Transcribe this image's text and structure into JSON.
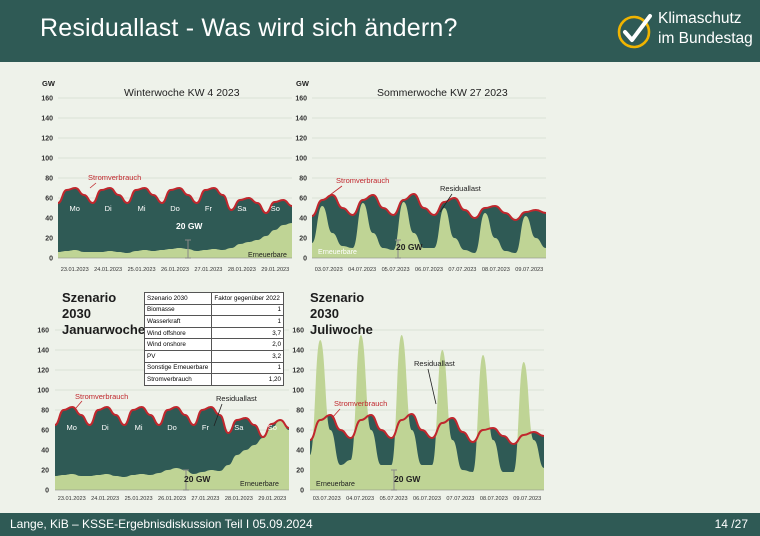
{
  "header": {
    "title": "Residuallast - Was wird sich ändern?",
    "logo_line1": "Klimaschutz",
    "logo_line2": "im Bundestag",
    "check_icon": "check-circle-icon",
    "colors": {
      "bar": "#2f5a55",
      "logo_ring": "#f0b400"
    }
  },
  "footer": {
    "left": "Lange, KiB – KSSE-Ergebnisdiskussion Teil I 05.09.2024",
    "right": "14 /27"
  },
  "colors": {
    "consumption": "#c0272d",
    "residual": "#2f5a55",
    "renewables": "#bfd495",
    "grid": "#c8d0c0"
  },
  "table": {
    "headers": [
      "Szenario 2030",
      "Faktor gegenüber 2022"
    ],
    "rows": [
      [
        "Biomasse",
        "1"
      ],
      [
        "Wasserkraft",
        "1"
      ],
      [
        "Wind offshore",
        "3,7"
      ],
      [
        "Wind onshore",
        "2,0"
      ],
      [
        "PV",
        "3,2"
      ],
      [
        "Sonstige Erneuerbare",
        "1"
      ],
      [
        "Stromverbrauch",
        "1,20"
      ]
    ]
  },
  "chart_data": [
    {
      "type": "area",
      "title": "Winterwoche KW 4 2023",
      "heading": "",
      "ylabel": "GW",
      "ylim": [
        0,
        160
      ],
      "yticks": [
        0,
        20,
        40,
        60,
        80,
        100,
        120,
        140,
        160
      ],
      "grid": true,
      "x_ticks": [
        "23.01.2023",
        "24.01.2023",
        "25.01.2023",
        "26.01.2023",
        "27.01.2023",
        "28.01.2023",
        "29.01.2023"
      ],
      "day_labels": [
        "Mo",
        "Di",
        "Mi",
        "Do",
        "Fr",
        "Sa",
        "So"
      ],
      "annotations": [
        "Stromverbrauch",
        "20 GW",
        "Erneuerbare"
      ],
      "series": [
        {
          "name": "Stromverbrauch",
          "values": [
            55,
            68,
            70,
            63,
            55,
            68,
            70,
            63,
            55,
            68,
            70,
            63,
            55,
            68,
            70,
            63,
            55,
            68,
            70,
            63,
            48,
            58,
            60,
            55,
            45,
            56,
            58,
            52
          ]
        },
        {
          "name": "Erneuerbare",
          "values": [
            6,
            7,
            8,
            6,
            6,
            6,
            7,
            6,
            5,
            7,
            8,
            7,
            8,
            9,
            10,
            9,
            7,
            8,
            9,
            8,
            10,
            14,
            16,
            18,
            22,
            28,
            33,
            35
          ]
        }
      ]
    },
    {
      "type": "area",
      "title": "Sommerwoche KW 27 2023",
      "heading": "",
      "ylabel": "GW",
      "ylim": [
        0,
        160
      ],
      "yticks": [
        0,
        20,
        40,
        60,
        80,
        100,
        120,
        140,
        160
      ],
      "grid": true,
      "x_ticks": [
        "03.07.2023",
        "04.07.2023",
        "05.07.2023",
        "06.07.2023",
        "07.07.2023",
        "08.07.2023",
        "09.07.2023"
      ],
      "day_labels": [],
      "annotations": [
        "Stromverbrauch",
        "Residuallast",
        "20 GW",
        "Erneuerbare"
      ],
      "series": [
        {
          "name": "Stromverbrauch",
          "values": [
            42,
            58,
            63,
            50,
            43,
            58,
            63,
            50,
            43,
            58,
            64,
            50,
            43,
            56,
            60,
            48,
            40,
            50,
            52,
            45,
            38,
            46,
            48,
            45
          ]
        },
        {
          "name": "Erneuerbare",
          "values": [
            15,
            52,
            25,
            12,
            10,
            55,
            25,
            10,
            8,
            56,
            25,
            10,
            10,
            50,
            20,
            8,
            5,
            45,
            20,
            7,
            5,
            42,
            20,
            10
          ]
        }
      ]
    },
    {
      "type": "area",
      "title": "",
      "heading": "Szenario 2030\nJanuarwoche",
      "ylabel": "",
      "ylim": [
        0,
        160
      ],
      "yticks": [
        0,
        20,
        40,
        60,
        80,
        100,
        120,
        140,
        160
      ],
      "grid": true,
      "x_ticks": [
        "23.01.2023",
        "24.01.2023",
        "25.01.2023",
        "26.01.2023",
        "27.01.2023",
        "28.01.2023",
        "29.01.2023"
      ],
      "day_labels": [
        "Mo",
        "Di",
        "Mi",
        "Do",
        "Fr",
        "Sa",
        "So"
      ],
      "annotations": [
        "Stromverbrauch",
        "Residuallast",
        "20 GW",
        "Erneuerbare"
      ],
      "series": [
        {
          "name": "Stromverbrauch",
          "values": [
            65,
            80,
            83,
            75,
            65,
            80,
            83,
            75,
            65,
            80,
            83,
            75,
            65,
            80,
            83,
            75,
            65,
            80,
            83,
            75,
            57,
            70,
            72,
            65,
            53,
            66,
            70,
            62
          ]
        },
        {
          "name": "Erneuerbare",
          "values": [
            14,
            15,
            16,
            14,
            14,
            15,
            16,
            14,
            13,
            15,
            16,
            15,
            17,
            20,
            22,
            20,
            16,
            18,
            20,
            19,
            25,
            35,
            40,
            45,
            52,
            62,
            70,
            60
          ]
        }
      ]
    },
    {
      "type": "area",
      "title": "",
      "heading": "Szenario 2030\nJuliwoche",
      "ylabel": "",
      "ylim": [
        0,
        160
      ],
      "yticks": [
        0,
        20,
        40,
        60,
        80,
        100,
        120,
        140,
        160
      ],
      "grid": true,
      "x_ticks": [
        "03.07.2023",
        "04.07.2023",
        "05.07.2023",
        "06.07.2023",
        "07.07.2023",
        "08.07.2023",
        "09.07.2023"
      ],
      "day_labels": [],
      "annotations": [
        "Stromverbrauch",
        "Residuallast",
        "20 GW",
        "Erneuerbare"
      ],
      "series": [
        {
          "name": "Stromverbrauch",
          "values": [
            50,
            70,
            75,
            60,
            52,
            70,
            75,
            60,
            52,
            70,
            76,
            60,
            52,
            67,
            72,
            58,
            48,
            60,
            62,
            54,
            46,
            55,
            58,
            54
          ]
        },
        {
          "name": "Erneuerbare",
          "values": [
            35,
            150,
            60,
            25,
            30,
            155,
            60,
            25,
            25,
            155,
            60,
            25,
            25,
            140,
            50,
            20,
            18,
            135,
            50,
            18,
            18,
            128,
            50,
            22
          ]
        }
      ]
    }
  ]
}
